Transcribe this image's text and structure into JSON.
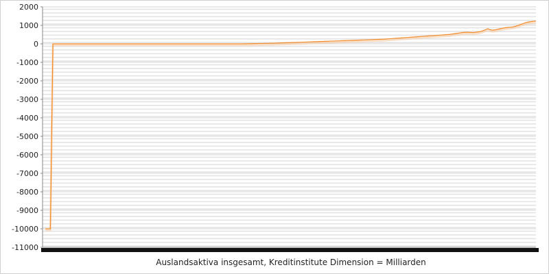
{
  "chart_data": {
    "type": "line",
    "title": "",
    "xlabel": "Auslandsaktiva insgesamt, Kreditinstitute Dimension = Milliarden",
    "ylabel": "",
    "ylim": [
      -11000,
      2000
    ],
    "y_ticks": [
      2000,
      1000,
      0,
      -1000,
      -2000,
      -3000,
      -4000,
      -5000,
      -6000,
      -7000,
      -8000,
      -9000,
      -10000,
      -11000
    ],
    "y_tick_labels": [
      "2000",
      "1000",
      "0",
      "-1000",
      "-2000",
      "-3000",
      "-4000",
      "-5000",
      "-6000",
      "-7000",
      "-8000",
      "-9000",
      "-10000",
      "-11000"
    ],
    "grid": true,
    "legend": "none",
    "line_color": "#f28c28",
    "band_color": "#f6c9a0",
    "series": [
      {
        "values": [
          -10000,
          -10000,
          -10000,
          0,
          0,
          0,
          0,
          0,
          0,
          0,
          0,
          0,
          0,
          0,
          0,
          0,
          0,
          0,
          0,
          0,
          0,
          0,
          0,
          0,
          0,
          0,
          0,
          0,
          0,
          0,
          0,
          0,
          0,
          0,
          0,
          0,
          0,
          0,
          0,
          0,
          0,
          0,
          0,
          0,
          0,
          0,
          0,
          0,
          0,
          0,
          0,
          0,
          0,
          0,
          0,
          0,
          0,
          0,
          0,
          0,
          0,
          0,
          0,
          0,
          0,
          0,
          0,
          0,
          0,
          0,
          0,
          0,
          0,
          0,
          0,
          0,
          0,
          0,
          5,
          5,
          10,
          10,
          15,
          15,
          20,
          20,
          25,
          25,
          30,
          30,
          35,
          40,
          45,
          50,
          55,
          60,
          65,
          70,
          75,
          80,
          85,
          90,
          95,
          100,
          105,
          110,
          115,
          120,
          125,
          130,
          135,
          140,
          145,
          150,
          155,
          160,
          165,
          170,
          175,
          180,
          185,
          190,
          195,
          200,
          205,
          210,
          215,
          220,
          225,
          230,
          235,
          240,
          245,
          250,
          260,
          270,
          280,
          290,
          300,
          310,
          320,
          330,
          340,
          350,
          360,
          370,
          380,
          390,
          400,
          410,
          420,
          430,
          440,
          450,
          460,
          470,
          480,
          490,
          500,
          510,
          530,
          550,
          570,
          590,
          610,
          620,
          630,
          620,
          610,
          620,
          640,
          660,
          700,
          750,
          820,
          760,
          740,
          760,
          790,
          820,
          850,
          870,
          890,
          900,
          920,
          950,
          1000,
          1050,
          1100,
          1150,
          1180,
          1200,
          1220,
          1230
        ]
      }
    ]
  }
}
